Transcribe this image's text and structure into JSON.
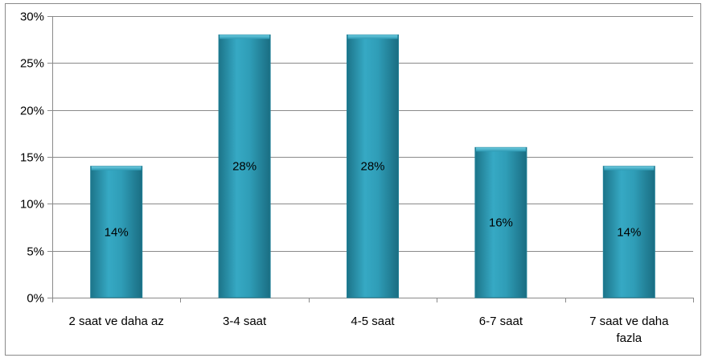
{
  "chart_data": {
    "type": "bar",
    "categories": [
      "2 saat ve daha az",
      "3-4 saat",
      "4-5 saat",
      "6-7 saat",
      "7 saat ve daha fazla"
    ],
    "values": [
      14,
      28,
      28,
      16,
      14
    ],
    "data_labels": [
      "14%",
      "28%",
      "28%",
      "16%",
      "14%"
    ],
    "ylim": [
      0,
      30
    ],
    "y_ticks": [
      0,
      5,
      10,
      15,
      20,
      25,
      30
    ],
    "y_tick_labels": [
      "0%",
      "5%",
      "10%",
      "15%",
      "20%",
      "25%",
      "30%"
    ],
    "grid": true,
    "legend": "none",
    "title": "",
    "xlabel": "",
    "ylabel": "",
    "bar_color": "#2d9ab4",
    "grid_color": "#8a8a8a"
  }
}
